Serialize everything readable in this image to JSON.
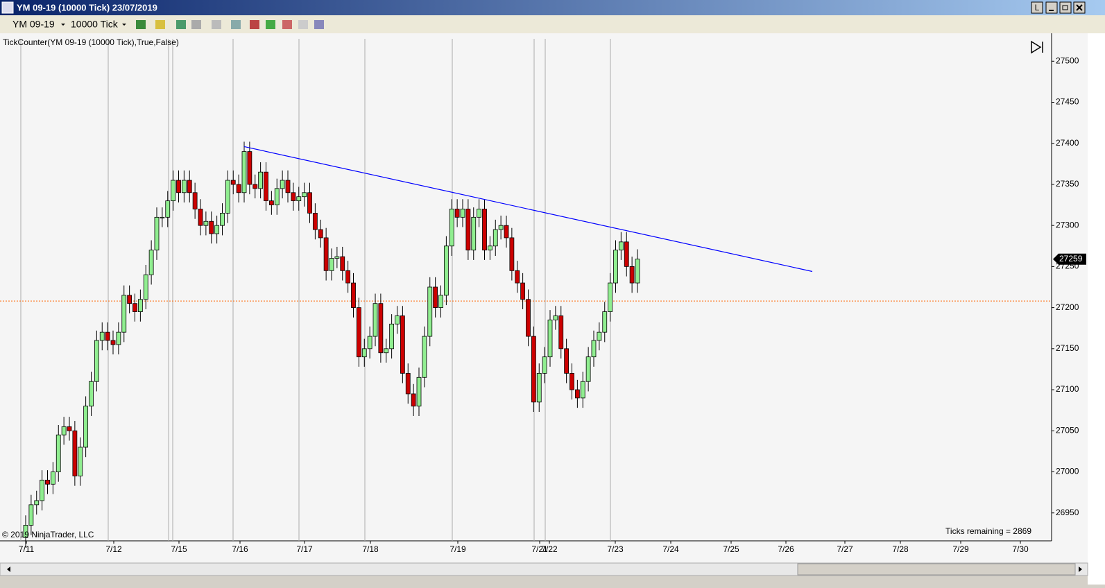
{
  "window": {
    "title": "YM 09-19 (10000 Tick)  23/07/2019",
    "button_label": "L"
  },
  "toolbar": {
    "instrument": "YM 09-19",
    "period": "10000 Tick"
  },
  "chart_data": {
    "type": "candlestick",
    "indicator_label": "TickCounter(YM 09-19 (10000 Tick),True,False)",
    "copyright": "© 2019 NinjaTrader, LLC",
    "ticks_remaining": "Ticks remaining = 2869",
    "x_labels": [
      "7/11",
      "7/12",
      "7/15",
      "7/16",
      "7/17",
      "7/18",
      "7/19",
      "7/21",
      "7/22",
      "7/23",
      "7/24",
      "7/25",
      "7/26",
      "7/27",
      "7/28",
      "7/29",
      "7/30"
    ],
    "open": [
      26920,
      26935,
      26960,
      26965,
      26990,
      26985,
      27000,
      27045,
      27055,
      27050,
      26995,
      27030,
      27080,
      27110,
      27160,
      27170,
      27160,
      27155,
      27170,
      27215,
      27205,
      27195,
      27210,
      27240,
      27270,
      27310,
      27310,
      27330,
      27355,
      27340,
      27355,
      27340,
      27320,
      27300,
      27305,
      27290,
      27300,
      27315,
      27355,
      27350,
      27340,
      27390,
      27350,
      27345,
      27365,
      27330,
      27325,
      27345,
      27355,
      27340,
      27330,
      27335,
      27340,
      27315,
      27295,
      27285,
      27245,
      27260,
      27262,
      27245,
      27230,
      27200,
      27140,
      27150,
      27165,
      27205,
      27145,
      27150,
      27180,
      27190,
      27120,
      27095,
      27080,
      27115,
      27165,
      27225,
      27200,
      27215,
      27275,
      27320,
      27310,
      27320,
      27270,
      27310,
      27320,
      27270,
      27275,
      27295,
      27300,
      27285,
      27245,
      27230,
      27210,
      27165,
      27085,
      27120,
      27140,
      27185,
      27190,
      27150,
      27120,
      27100,
      27090,
      27110,
      27140,
      27160,
      27170,
      27195,
      27230,
      27270,
      27280,
      27250,
      27230
    ],
    "high": [
      26947,
      26972,
      26977,
      27002,
      27002,
      27012,
      27057,
      27067,
      27067,
      27062,
      27042,
      27092,
      27122,
      27172,
      27182,
      27182,
      27172,
      27182,
      27227,
      27227,
      27217,
      27222,
      27252,
      27282,
      27322,
      27322,
      27342,
      27367,
      27367,
      27367,
      27367,
      27352,
      27332,
      27317,
      27317,
      27312,
      27327,
      27367,
      27367,
      27362,
      27402,
      27402,
      27362,
      27377,
      27377,
      27342,
      27357,
      27367,
      27367,
      27352,
      27347,
      27352,
      27352,
      27327,
      27307,
      27297,
      27272,
      27274,
      27274,
      27257,
      27242,
      27212,
      27162,
      27177,
      27217,
      27217,
      27162,
      27192,
      27202,
      27202,
      27132,
      27107,
      27127,
      27177,
      27237,
      27237,
      27227,
      27287,
      27332,
      27332,
      27332,
      27332,
      27322,
      27332,
      27332,
      27287,
      27307,
      27312,
      27312,
      27297,
      27257,
      27242,
      27222,
      27177,
      27132,
      27152,
      27197,
      27202,
      27202,
      27162,
      27132,
      27112,
      27122,
      27152,
      27172,
      27182,
      27207,
      27242,
      27282,
      27292,
      27292,
      27262,
      27271
    ],
    "low": [
      26908,
      26923,
      26948,
      26953,
      26973,
      26973,
      26988,
      27033,
      27038,
      26983,
      26983,
      27018,
      27068,
      27098,
      27148,
      27148,
      27143,
      27143,
      27158,
      27193,
      27183,
      27183,
      27198,
      27228,
      27258,
      27298,
      27298,
      27318,
      27328,
      27328,
      27328,
      27308,
      27288,
      27288,
      27278,
      27278,
      27288,
      27303,
      27338,
      27328,
      27328,
      27338,
      27333,
      27333,
      27318,
      27313,
      27313,
      27333,
      27328,
      27318,
      27318,
      27323,
      27303,
      27283,
      27273,
      27233,
      27233,
      27248,
      27233,
      27218,
      27188,
      27128,
      27128,
      27138,
      27153,
      27133,
      27133,
      27138,
      27168,
      27108,
      27083,
      27068,
      27068,
      27103,
      27153,
      27188,
      27188,
      27203,
      27263,
      27298,
      27298,
      27258,
      27258,
      27298,
      27258,
      27258,
      27263,
      27283,
      27273,
      27233,
      27218,
      27198,
      27153,
      27073,
      27073,
      27108,
      27128,
      27173,
      27138,
      27108,
      27088,
      27078,
      27078,
      27098,
      27128,
      27148,
      27158,
      27183,
      27218,
      27258,
      27238,
      27218,
      27218
    ],
    "close": [
      26935,
      26960,
      26965,
      26990,
      26985,
      27000,
      27045,
      27055,
      27050,
      26995,
      27030,
      27080,
      27110,
      27160,
      27170,
      27160,
      27155,
      27170,
      27215,
      27205,
      27195,
      27210,
      27240,
      27270,
      27310,
      27310,
      27330,
      27355,
      27340,
      27355,
      27340,
      27320,
      27300,
      27305,
      27290,
      27300,
      27315,
      27355,
      27350,
      27340,
      27390,
      27350,
      27345,
      27365,
      27330,
      27325,
      27345,
      27355,
      27340,
      27330,
      27335,
      27340,
      27315,
      27295,
      27285,
      27245,
      27260,
      27262,
      27245,
      27230,
      27200,
      27140,
      27150,
      27165,
      27205,
      27145,
      27150,
      27180,
      27190,
      27120,
      27095,
      27080,
      27115,
      27165,
      27225,
      27200,
      27215,
      27275,
      27320,
      27310,
      27320,
      27270,
      27310,
      27320,
      27270,
      27275,
      27295,
      27300,
      27285,
      27245,
      27230,
      27210,
      27165,
      27085,
      27120,
      27140,
      27185,
      27190,
      27150,
      27120,
      27100,
      27090,
      27110,
      27140,
      27160,
      27170,
      27195,
      27230,
      27270,
      27280,
      27250,
      27230,
      27259
    ],
    "ylim": [
      26916,
      27534
    ],
    "yticks": [
      26950,
      27000,
      27050,
      27100,
      27150,
      27200,
      27250,
      27300,
      27350,
      27400,
      27450,
      27500
    ],
    "last_price": 27259,
    "price_line": 27208,
    "trendline": {
      "x": [
        40,
        144
      ],
      "y": [
        27396,
        27244
      ]
    },
    "up_color": "#90ee90",
    "down_color": "#cc0000",
    "trendline_color": "#0000ff",
    "price_line_color": "#ff6600"
  }
}
